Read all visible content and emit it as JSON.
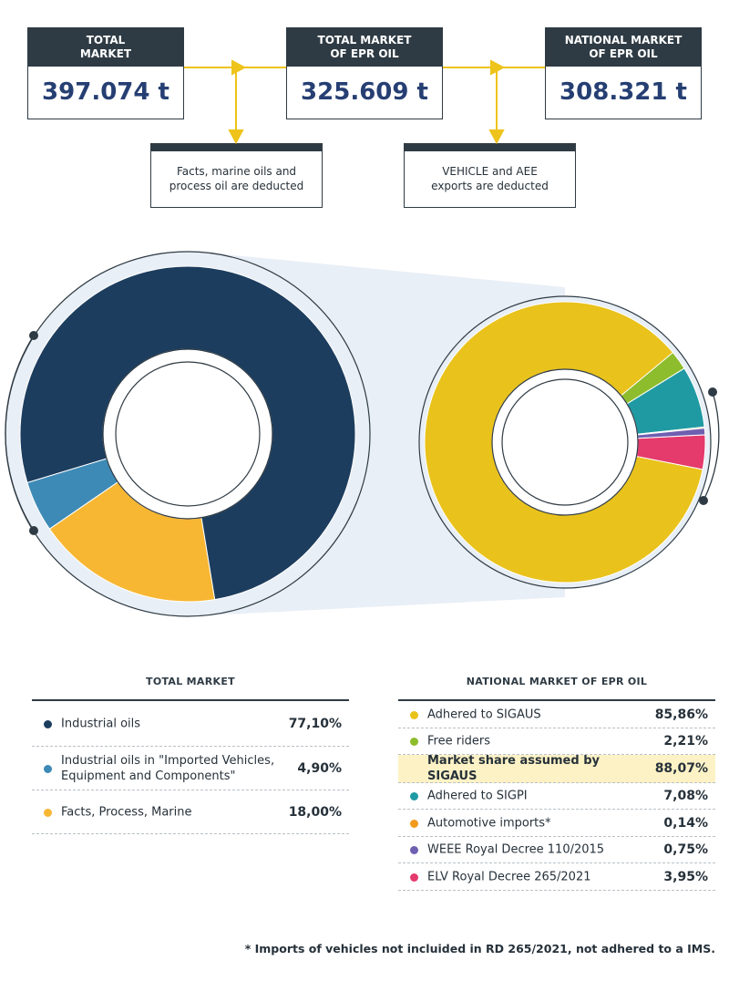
{
  "flow": {
    "total_market": {
      "title": "TOTAL\nMARKET",
      "value": "397.074 t"
    },
    "total_epr": {
      "title": "TOTAL MARKET\nOF EPR OIL",
      "value": "325.609 t"
    },
    "national_epr": {
      "title": "NATIONAL MARKET\nOF EPR OIL",
      "value": "308.321 t"
    },
    "note_1": "Facts, marine oils and\nprocess oil are deducted",
    "note_2": "VEHICLE and AEE\nexports are deducted"
  },
  "colors": {
    "dark_navy": "#1c3d5e",
    "steel_blue": "#3e8ab6",
    "amber": "#f7b733",
    "gold": "#e9c21c",
    "green": "#8dbd2c",
    "teal": "#1f9aa3",
    "orange": "#f29a1c",
    "purple": "#6f5fb0",
    "pink": "#e43a6c",
    "accent": "#263f73",
    "highlight": "#fdf2c5",
    "arrow": "#eec31b"
  },
  "chart_data": [
    {
      "type": "pie",
      "title": "TOTAL MARKET",
      "series": [
        {
          "name": "Industrial oils",
          "value": 77.1,
          "label": "77,10%",
          "color": "#1c3d5e"
        },
        {
          "name": "Industrial oils in \"Imported Vehicles, Equipment and Components\"",
          "value": 4.9,
          "label": "4,90%",
          "color": "#3e8ab6"
        },
        {
          "name": "Facts, Process, Marine",
          "value": 18.0,
          "label": "18,00%",
          "color": "#f7b733"
        }
      ]
    },
    {
      "type": "pie",
      "title": "NATIONAL MARKET OF EPR OIL",
      "series": [
        {
          "name": "Adhered to SIGAUS",
          "value": 85.86,
          "label": "85,86%",
          "color": "#e9c21c"
        },
        {
          "name": "Free riders",
          "value": 2.21,
          "label": "2,21%",
          "color": "#8dbd2c"
        },
        {
          "name": "Market share assumed by SIGAUS",
          "value": 88.07,
          "label": "88,07%",
          "highlight": true,
          "in_chart": false
        },
        {
          "name": "Adhered to SIGPI",
          "value": 7.08,
          "label": "7,08%",
          "color": "#1f9aa3"
        },
        {
          "name": "Automotive imports*",
          "value": 0.14,
          "label": "0,14%",
          "color": "#f29a1c"
        },
        {
          "name": "WEEE Royal Decree 110/2015",
          "value": 0.75,
          "label": "0,75%",
          "color": "#6f5fb0"
        },
        {
          "name": "ELV Royal Decree 265/2021",
          "value": 3.95,
          "label": "3,95%",
          "color": "#e43a6c"
        }
      ]
    }
  ],
  "footnote": "* Imports of vehicles not incluided in RD 265/2021, not adhered to a IMS."
}
